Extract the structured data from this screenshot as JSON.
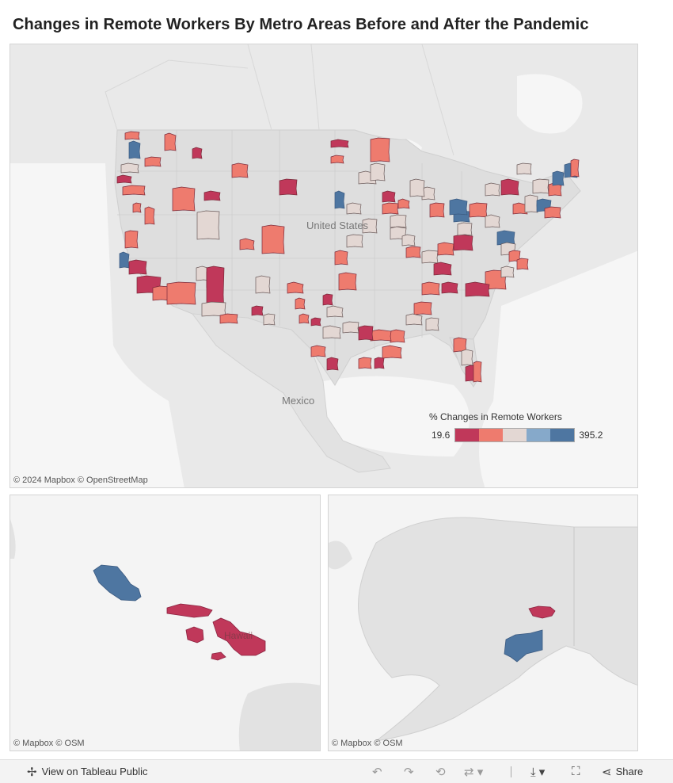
{
  "title": "Changes in Remote Workers By Metro Areas Before and After the Pandemic",
  "main_map": {
    "attribution": "© 2024 Mapbox  © OpenStreetMap",
    "labels": {
      "country_us": "United States",
      "country_mx": "Mexico"
    }
  },
  "hawaii_map": {
    "attribution": "© Mapbox  © OSM",
    "label": "Hawaii"
  },
  "alaska_map": {
    "attribution": "© Mapbox  © OSM"
  },
  "legend": {
    "title": "% Changes in Remote Workers",
    "min": "19.6",
    "max": "395.2",
    "colors": [
      "#c0385a",
      "#ee7b6e",
      "#e3d7d3",
      "#86a9ca",
      "#4e76a1"
    ]
  },
  "toolbar": {
    "view_label": "View on Tableau Public",
    "share_label": "Share",
    "icons": [
      "tableau-icon",
      "undo-icon",
      "redo-icon",
      "revert-icon",
      "refresh-icon",
      "download-icon",
      "fullscreen-icon",
      "share-icon"
    ]
  }
}
